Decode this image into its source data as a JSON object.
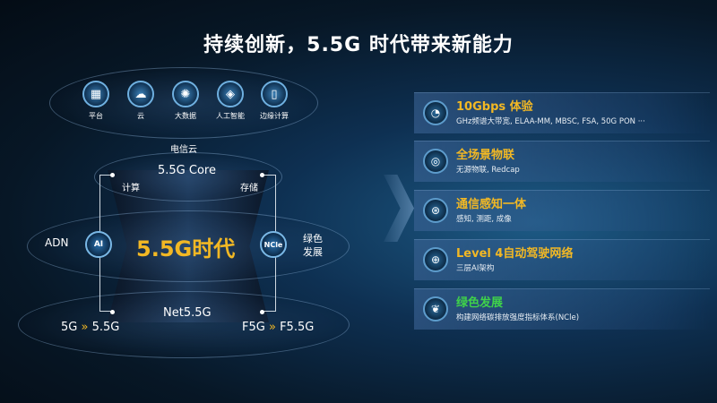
{
  "title": "持续创新，5.5G 时代带来新能力",
  "top_icons": [
    {
      "icon": "platform-icon",
      "label": "平台"
    },
    {
      "icon": "cloud-icon",
      "label": "云"
    },
    {
      "icon": "big-data-icon",
      "label": "大数据"
    },
    {
      "icon": "ai-chip-icon",
      "label": "人工智能"
    },
    {
      "icon": "edge-computing-icon",
      "label": "边缘计算"
    }
  ],
  "diagram": {
    "telecom_cloud": "电信云",
    "core": "5.5G Core",
    "compute": "计算",
    "storage": "存储",
    "center": "5.5G时代",
    "ai": "AI",
    "ncle": "NCle",
    "adn": "ADN",
    "green1": "绿色",
    "green2": "发展",
    "net": "Net5.5G",
    "left_from": "5G",
    "left_to": "5.5G",
    "right_from": "F5G",
    "right_to": "F5.5G",
    "arrow": "»"
  },
  "features": [
    {
      "icon": "speed-icon",
      "title": "10Gbps 体验",
      "sub": "GHz频谱大带宽, ELAA-MM, MBSC, FSA, 50G PON ···",
      "color": "#f2b824"
    },
    {
      "icon": "iot-icon",
      "title": "全场景物联",
      "sub": "无源物联, Redcap",
      "color": "#f2b824"
    },
    {
      "icon": "sensing-icon",
      "title": "通信感知一体",
      "sub": "感知, 测距, 成像",
      "color": "#f2b824"
    },
    {
      "icon": "network-globe-icon",
      "title": "Level 4自动驾驶网络",
      "sub": "三层AI架构",
      "color": "#f2b824"
    },
    {
      "icon": "leaf-icon",
      "title": "绿色发展",
      "sub": "构建网络碳排放强度指标体系(NCle)",
      "color": "#3fd24a"
    }
  ],
  "colors": {
    "accent": "#f2b824",
    "green": "#3fd24a"
  }
}
